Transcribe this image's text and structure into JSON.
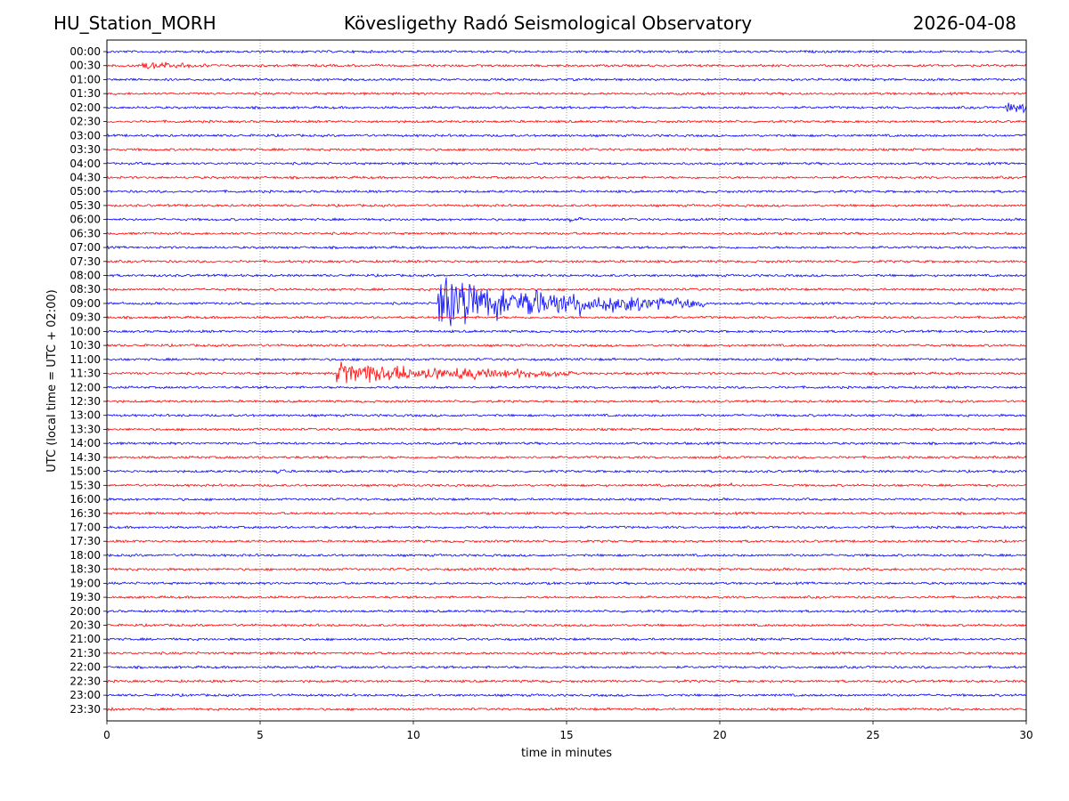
{
  "header": {
    "station": "HU_Station_MORH",
    "title": "Kövesligethy Radó Seismological Observatory",
    "date": "2026-04-08"
  },
  "chart_data": {
    "type": "line",
    "title": "Kövesligethy Radó Seismological Observatory",
    "xlabel": "time in minutes",
    "ylabel": "UTC (local time = UTC + 02:00)",
    "xlim": [
      0,
      30
    ],
    "xticks": [
      "0",
      "5",
      "10",
      "15",
      "20",
      "25",
      "30"
    ],
    "xtick_values": [
      0,
      5,
      10,
      15,
      20,
      25,
      30
    ],
    "grid_x": true,
    "colors": [
      "#0000ff",
      "#ff0000"
    ],
    "rows": [
      "00:00",
      "00:30",
      "01:00",
      "01:30",
      "02:00",
      "02:30",
      "03:00",
      "03:30",
      "04:00",
      "04:30",
      "05:00",
      "05:30",
      "06:00",
      "06:30",
      "07:00",
      "07:30",
      "08:00",
      "08:30",
      "09:00",
      "09:30",
      "10:00",
      "10:30",
      "11:00",
      "11:30",
      "12:00",
      "12:30",
      "13:00",
      "13:30",
      "14:00",
      "14:30",
      "15:00",
      "15:30",
      "16:00",
      "16:30",
      "17:00",
      "17:30",
      "18:00",
      "18:30",
      "19:00",
      "19:30",
      "20:00",
      "20:30",
      "21:00",
      "21:30",
      "22:00",
      "22:30",
      "23:00",
      "23:30"
    ],
    "events": [
      {
        "row": 1,
        "start_min": 1.1,
        "end_min": 3.5,
        "peak_amp": 0.35,
        "decay": 0.6
      },
      {
        "row": 4,
        "start_min": 29.3,
        "end_min": 30.0,
        "peak_amp": 0.45,
        "decay": 0.5
      },
      {
        "row": 12,
        "start_min": 14.8,
        "end_min": 15.5,
        "peak_amp": 0.2,
        "decay": 0.5
      },
      {
        "row": 18,
        "start_min": 10.8,
        "end_min": 19.5,
        "peak_amp": 2.2,
        "decay": 0.2
      },
      {
        "row": 23,
        "start_min": 7.5,
        "end_min": 15.2,
        "peak_amp": 1.0,
        "decay": 0.18
      },
      {
        "row": 30,
        "start_min": 5.55,
        "end_min": 5.8,
        "peak_amp": 0.35,
        "decay": 0.5
      },
      {
        "row": 31,
        "start_min": 19.6,
        "end_min": 20.4,
        "peak_amp": 0.15,
        "decay": 0.5
      },
      {
        "row": 43,
        "start_min": 6.0,
        "end_min": 6.8,
        "peak_amp": 0.12,
        "decay": 0.5
      },
      {
        "row": 47,
        "start_min": 0.0,
        "end_min": 0.5,
        "peak_amp": 0.15,
        "decay": 0.5
      }
    ]
  }
}
